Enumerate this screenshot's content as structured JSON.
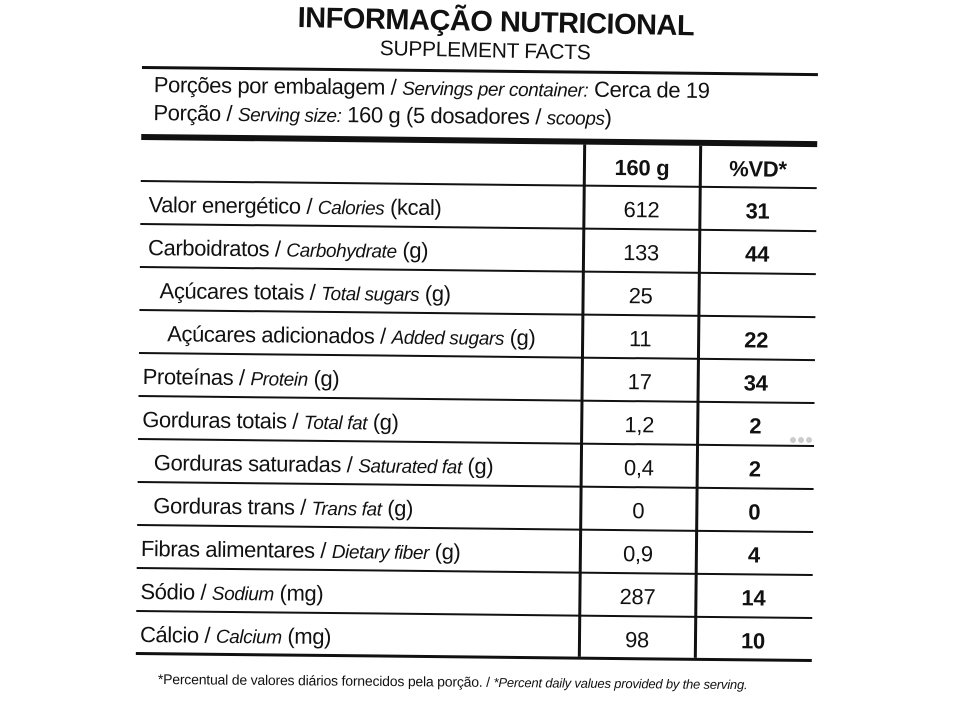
{
  "header": {
    "title": "INFORMAÇÃO NUTRICIONAL",
    "subtitle": "SUPPLEMENT FACTS"
  },
  "servings": {
    "per_container_pt": "Porções por embalagem / ",
    "per_container_en": "Servings per container:",
    "per_container_value": " Cerca de 19",
    "size_pt": "Porção / ",
    "size_en": "Serving size:",
    "size_value_a": " 160 g (5 dosadores / ",
    "size_value_en": "scoops",
    "size_value_b": ")"
  },
  "table": {
    "columns": [
      "160 g",
      "%VD*"
    ],
    "rows": [
      {
        "pt": "Valor energético / ",
        "en": "Calories",
        "unit": " (kcal)",
        "amount": "612",
        "dv": "31"
      },
      {
        "pt": "Carboidratos / ",
        "en": "Carbohydrate",
        "unit": " (g)",
        "amount": "133",
        "dv": "44"
      },
      {
        "pt": "Açúcares totais / ",
        "en": "Total sugars",
        "unit": " (g)",
        "amount": "25",
        "dv": ""
      },
      {
        "pt": "Açúcares adicionados / ",
        "en": "Added sugars",
        "unit": " (g)",
        "amount": "11",
        "dv": "22"
      },
      {
        "pt": "Proteínas / ",
        "en": "Protein",
        "unit": " (g)",
        "amount": "17",
        "dv": "34"
      },
      {
        "pt": "Gorduras totais / ",
        "en": "Total fat",
        "unit": " (g)",
        "amount": "1,2",
        "dv": "2"
      },
      {
        "pt": "Gorduras saturadas / ",
        "en": "Saturated fat",
        "unit": " (g)",
        "amount": "0,4",
        "dv": "2"
      },
      {
        "pt": "Gorduras trans / ",
        "en": "Trans fat",
        "unit": " (g)",
        "amount": "0",
        "dv": "0"
      },
      {
        "pt": "Fibras alimentares / ",
        "en": "Dietary fiber",
        "unit": " (g)",
        "amount": "0,9",
        "dv": "4"
      },
      {
        "pt": "Sódio / ",
        "en": "Sodium",
        "unit": " (mg)",
        "amount": "287",
        "dv": "14"
      },
      {
        "pt": "Cálcio / ",
        "en": "Calcium",
        "unit": " (mg)",
        "amount": "98",
        "dv": "10"
      }
    ]
  },
  "footnote": {
    "pt": "*Percentual de valores diários fornecidos pela porção.",
    "sep": " / ",
    "en": "*Percent daily values provided by the serving."
  }
}
